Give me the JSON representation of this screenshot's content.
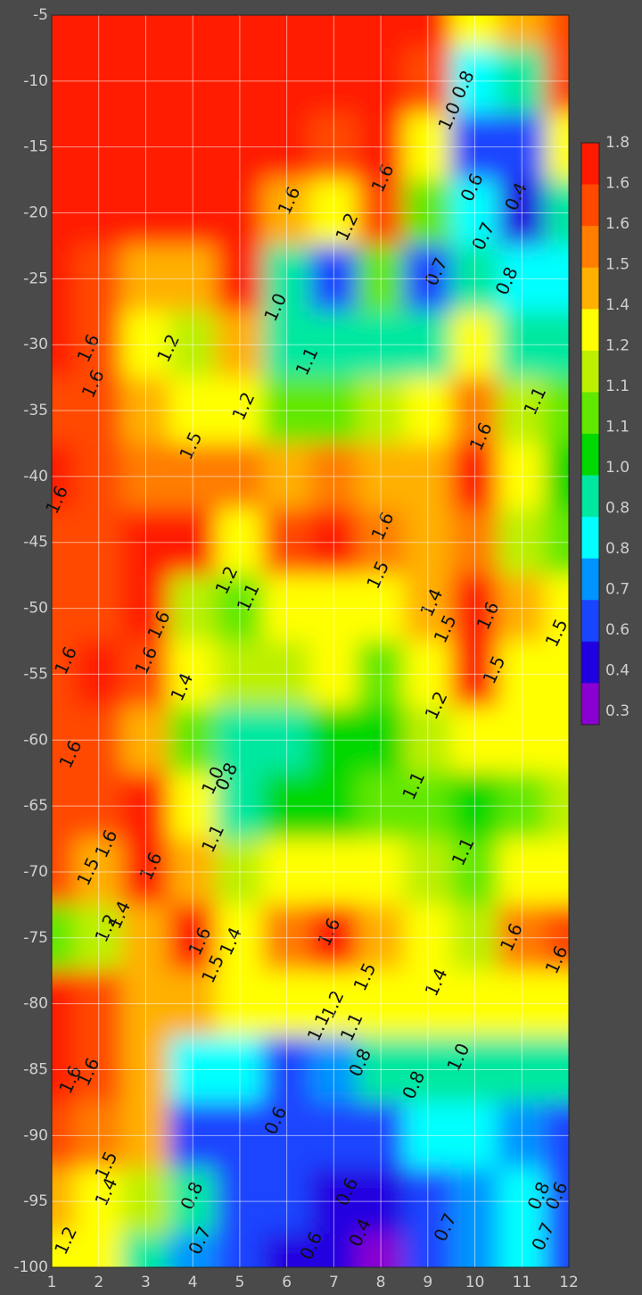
{
  "chart_data": {
    "type": "contour",
    "x": [
      1,
      2,
      3,
      4,
      5,
      6,
      7,
      8,
      9,
      10,
      11,
      12
    ],
    "y": [
      -5,
      -10,
      -15,
      -20,
      -25,
      -30,
      -35,
      -40,
      -45,
      -50,
      -55,
      -60,
      -65,
      -70,
      -75,
      -80,
      -85,
      -90,
      -95,
      -100
    ],
    "z": [
      [
        1.75,
        1.75,
        1.75,
        1.75,
        1.75,
        1.7,
        1.7,
        1.7,
        1.65,
        1.3,
        1.5,
        1.6
      ],
      [
        1.75,
        1.75,
        1.75,
        1.75,
        1.75,
        1.7,
        1.65,
        1.65,
        1.6,
        0.8,
        1.0,
        1.6
      ],
      [
        1.75,
        1.75,
        1.75,
        1.75,
        1.75,
        1.65,
        1.6,
        1.7,
        1.4,
        0.6,
        0.7,
        1.4
      ],
      [
        1.75,
        1.7,
        1.7,
        1.65,
        1.7,
        1.5,
        1.3,
        1.6,
        1.1,
        0.8,
        0.45,
        1.0
      ],
      [
        1.75,
        1.6,
        1.5,
        1.45,
        1.65,
        1.0,
        0.6,
        1.1,
        0.65,
        1.0,
        0.8,
        0.8
      ],
      [
        1.7,
        1.6,
        1.4,
        1.2,
        1.5,
        1.0,
        0.9,
        0.85,
        0.85,
        1.3,
        1.0,
        0.9
      ],
      [
        1.6,
        1.6,
        1.5,
        1.4,
        1.3,
        1.1,
        1.1,
        1.2,
        1.3,
        1.55,
        1.15,
        1.1
      ],
      [
        1.65,
        1.6,
        1.55,
        1.55,
        1.55,
        1.5,
        1.55,
        1.5,
        1.45,
        1.7,
        1.3,
        1.05
      ],
      [
        1.6,
        1.6,
        1.65,
        1.7,
        1.4,
        1.6,
        1.7,
        1.55,
        1.5,
        1.55,
        1.2,
        1.1
      ],
      [
        1.6,
        1.6,
        1.65,
        1.15,
        1.1,
        1.3,
        1.35,
        1.3,
        1.5,
        1.7,
        1.45,
        1.35
      ],
      [
        1.6,
        1.65,
        1.6,
        1.35,
        1.2,
        1.2,
        1.25,
        1.1,
        1.3,
        1.65,
        1.4,
        1.4
      ],
      [
        1.6,
        1.6,
        1.5,
        1.1,
        0.9,
        1.0,
        1.05,
        1.05,
        1.2,
        1.25,
        1.25,
        1.25
      ],
      [
        1.6,
        1.6,
        1.65,
        1.3,
        1.0,
        1.05,
        1.05,
        1.1,
        1.1,
        1.05,
        1.1,
        1.2
      ],
      [
        1.6,
        1.5,
        1.65,
        1.45,
        1.15,
        1.3,
        1.4,
        1.3,
        1.2,
        1.1,
        1.3,
        1.4
      ],
      [
        1.1,
        1.2,
        1.5,
        1.65,
        1.4,
        1.55,
        1.65,
        1.5,
        1.35,
        1.2,
        1.55,
        1.6
      ],
      [
        1.65,
        1.6,
        1.5,
        1.5,
        1.35,
        1.35,
        1.3,
        1.3,
        1.35,
        1.3,
        1.35,
        1.4
      ],
      [
        1.65,
        1.6,
        1.5,
        0.8,
        0.8,
        0.7,
        0.75,
        0.9,
        0.85,
        0.95,
        0.9,
        0.85
      ],
      [
        1.6,
        1.55,
        1.5,
        0.7,
        0.6,
        0.6,
        0.6,
        0.7,
        0.8,
        0.8,
        0.75,
        0.7
      ],
      [
        1.45,
        1.4,
        1.2,
        0.85,
        0.7,
        0.6,
        0.5,
        0.45,
        0.65,
        0.75,
        0.8,
        0.7
      ],
      [
        1.25,
        1.35,
        1.0,
        0.75,
        0.65,
        0.55,
        0.45,
        0.35,
        0.6,
        0.75,
        0.8,
        0.65
      ]
    ],
    "xlim": [
      1,
      12
    ],
    "ylim": [
      -100,
      -5
    ],
    "xticks": [
      1,
      2,
      3,
      4,
      5,
      6,
      7,
      8,
      9,
      10,
      11,
      12
    ],
    "yticks": [
      -5,
      -10,
      -15,
      -20,
      -25,
      -30,
      -35,
      -40,
      -45,
      -50,
      -55,
      -60,
      -65,
      -70,
      -75,
      -80,
      -85,
      -90,
      -95,
      -100
    ],
    "grid": true,
    "colorbar": {
      "ticks": [
        1.8,
        {
          "value": 1.64,
          "label": "1.6"
        },
        {
          "value": 1.56,
          "label": "1.6"
        },
        1.5,
        1.4,
        {
          "value": 1.24,
          "label": "1.2"
        },
        {
          "value": 1.14,
          "label": "1.1"
        },
        {
          "value": 1.06,
          "label": "1.1"
        },
        {
          "value": 1.0,
          "label": "1.0"
        },
        {
          "value": 0.84,
          "label": "0.8"
        },
        {
          "value": 0.76,
          "label": "0.8"
        },
        0.7,
        {
          "value": 0.56,
          "label": "0.6"
        },
        {
          "value": 0.44,
          "label": "0.4"
        },
        0.3
      ],
      "colors": [
        "#ff1a00",
        "#ff4a00",
        "#ff7d00",
        "#ffb000",
        "#ffff00",
        "#bcf000",
        "#62e800",
        "#00d800",
        "#00e8a0",
        "#00ffff",
        "#0094ff",
        "#1a45ff",
        "#2000e0",
        "#8a00d0"
      ]
    },
    "contour_labels": [
      {
        "text": "1.6",
        "x": 8.06,
        "y": -17.4
      },
      {
        "text": "1.6",
        "x": 6.07,
        "y": -19.1
      },
      {
        "text": "1.0",
        "x": 9.48,
        "y": -12.7
      },
      {
        "text": "0.8",
        "x": 9.77,
        "y": -10.3
      },
      {
        "text": "0.6",
        "x": 9.96,
        "y": -18.1
      },
      {
        "text": "0.4",
        "x": 10.9,
        "y": -18.8
      },
      {
        "text": "0.7",
        "x": 10.2,
        "y": -21.8
      },
      {
        "text": "0.8",
        "x": 10.7,
        "y": -25.2
      },
      {
        "text": "1.2",
        "x": 7.3,
        "y": -21.1
      },
      {
        "text": "0.7",
        "x": 9.2,
        "y": -24.5
      },
      {
        "text": "1.0",
        "x": 5.78,
        "y": -27.2
      },
      {
        "text": "1.1",
        "x": 6.45,
        "y": -31.3
      },
      {
        "text": "1.2",
        "x": 3.5,
        "y": -30.3
      },
      {
        "text": "1.6",
        "x": 1.8,
        "y": -30.3
      },
      {
        "text": "1.6",
        "x": 1.9,
        "y": -33
      },
      {
        "text": "1.5",
        "x": 3.98,
        "y": -37.7
      },
      {
        "text": "1.2",
        "x": 5.1,
        "y": -34.7
      },
      {
        "text": "1.6",
        "x": 10.15,
        "y": -37.0
      },
      {
        "text": "1.1",
        "x": 11.3,
        "y": -34.3
      },
      {
        "text": "1.6",
        "x": 1.13,
        "y": -41.8
      },
      {
        "text": "1.6",
        "x": 8.06,
        "y": -43.8
      },
      {
        "text": "1.5",
        "x": 7.96,
        "y": -47.5
      },
      {
        "text": "1.2",
        "x": 4.74,
        "y": -47.9
      },
      {
        "text": "1.1",
        "x": 5.2,
        "y": -49.2
      },
      {
        "text": "1.6",
        "x": 3.3,
        "y": -51.3
      },
      {
        "text": "1.6",
        "x": 10.3,
        "y": -50.6
      },
      {
        "text": "1.4",
        "x": 9.1,
        "y": -49.6
      },
      {
        "text": "1.5",
        "x": 9.39,
        "y": -51.6
      },
      {
        "text": "1.5",
        "x": 11.76,
        "y": -51.9
      },
      {
        "text": "1.6",
        "x": 1.32,
        "y": -54
      },
      {
        "text": "1.6",
        "x": 3.03,
        "y": -54
      },
      {
        "text": "1.5",
        "x": 10.43,
        "y": -54.7
      },
      {
        "text": "1.4",
        "x": 3.79,
        "y": -56
      },
      {
        "text": "1.2",
        "x": 9.2,
        "y": -57.4
      },
      {
        "text": "1.6",
        "x": 1.42,
        "y": -61.1
      },
      {
        "text": "0.8",
        "x": 4.74,
        "y": -62.8
      },
      {
        "text": "1.0",
        "x": 4.45,
        "y": -63.1
      },
      {
        "text": "1.1",
        "x": 8.72,
        "y": -63.5
      },
      {
        "text": "1.1",
        "x": 4.45,
        "y": -67.5
      },
      {
        "text": "1.6",
        "x": 2.18,
        "y": -67.9
      },
      {
        "text": "1.5",
        "x": 1.8,
        "y": -70
      },
      {
        "text": "1.6",
        "x": 3.13,
        "y": -69.6
      },
      {
        "text": "1.1",
        "x": 9.77,
        "y": -68.5
      },
      {
        "text": "1.4",
        "x": 2.46,
        "y": -73.3
      },
      {
        "text": "1.2",
        "x": 2.18,
        "y": -74.3
      },
      {
        "text": "1.6",
        "x": 4.17,
        "y": -75.3
      },
      {
        "text": "1.4",
        "x": 4.83,
        "y": -75.3
      },
      {
        "text": "1.6",
        "x": 6.92,
        "y": -74.6
      },
      {
        "text": "1.5",
        "x": 4.45,
        "y": -77.4
      },
      {
        "text": "1.5",
        "x": 7.68,
        "y": -78
      },
      {
        "text": "1.4",
        "x": 9.2,
        "y": -78.4
      },
      {
        "text": "1.6",
        "x": 11.76,
        "y": -76.7
      },
      {
        "text": "1.6",
        "x": 10.8,
        "y": -75
      },
      {
        "text": "1.2",
        "x": 7.0,
        "y": -80.1
      },
      {
        "text": "1.1",
        "x": 6.7,
        "y": -81.8
      },
      {
        "text": "1.1",
        "x": 7.4,
        "y": -81.8
      },
      {
        "text": "0.8",
        "x": 7.58,
        "y": -84.5
      },
      {
        "text": "1.0",
        "x": 9.67,
        "y": -84.1
      },
      {
        "text": "0.8",
        "x": 8.72,
        "y": -86.2
      },
      {
        "text": "1.6",
        "x": 1.42,
        "y": -85.8
      },
      {
        "text": "1.6",
        "x": 1.8,
        "y": -85.2
      },
      {
        "text": "0.6",
        "x": 5.78,
        "y": -88.9
      },
      {
        "text": "1.5",
        "x": 2.18,
        "y": -92.3
      },
      {
        "text": "1.4",
        "x": 2.18,
        "y": -94.3
      },
      {
        "text": "0.6",
        "x": 7.3,
        "y": -94.3
      },
      {
        "text": "0.8",
        "x": 11.38,
        "y": -94.6
      },
      {
        "text": "0.6",
        "x": 11.76,
        "y": -94.6
      },
      {
        "text": "0.8",
        "x": 4.0,
        "y": -94.6
      },
      {
        "text": "0.7",
        "x": 9.39,
        "y": -97
      },
      {
        "text": "1.2",
        "x": 1.32,
        "y": -98
      },
      {
        "text": "0.7",
        "x": 4.17,
        "y": -98
      },
      {
        "text": "0.6",
        "x": 6.54,
        "y": -98.4
      },
      {
        "text": "0.4",
        "x": 7.58,
        "y": -97.4
      },
      {
        "text": "0.7",
        "x": 11.47,
        "y": -97.7
      }
    ]
  }
}
